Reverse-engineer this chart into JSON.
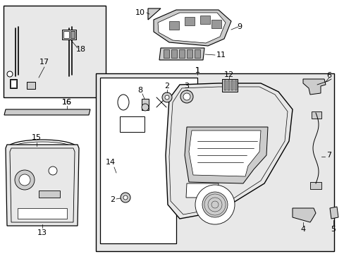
{
  "fig_width": 4.89,
  "fig_height": 3.6,
  "dpi": 100,
  "bg_color": "#f0f0f0",
  "white": "#ffffff",
  "black": "#000000",
  "gray_light": "#e8e8e8",
  "gray_mid": "#cccccc",
  "gray_dark": "#999999"
}
